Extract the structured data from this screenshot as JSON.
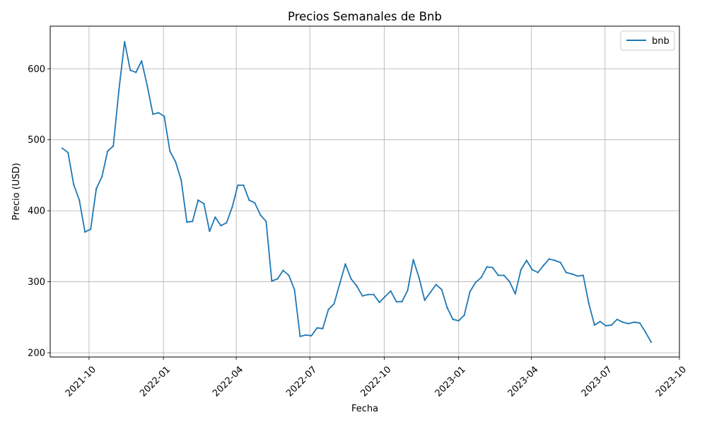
{
  "chart_data": {
    "type": "line",
    "title": "Precios Semanales de Bnb",
    "xlabel": "Fecha",
    "ylabel": "Precio (USD)",
    "x_ticks": [
      "2021-10",
      "2022-01",
      "2022-04",
      "2022-07",
      "2022-10",
      "2023-01",
      "2023-04",
      "2023-07",
      "2023-10"
    ],
    "y_ticks": [
      200,
      300,
      400,
      500,
      600
    ],
    "xlim": [
      "2021-08-14",
      "2023-10-01"
    ],
    "ylim": [
      194,
      660
    ],
    "grid": true,
    "legend_position": "top-right",
    "line_color": "#1f77b4",
    "series": [
      {
        "name": "bnb",
        "x": [
          "2021-08-29",
          "2021-09-05",
          "2021-09-12",
          "2021-09-19",
          "2021-09-26",
          "2021-10-03",
          "2021-10-10",
          "2021-10-17",
          "2021-10-24",
          "2021-10-31",
          "2021-11-07",
          "2021-11-14",
          "2021-11-21",
          "2021-11-28",
          "2021-12-05",
          "2021-12-12",
          "2021-12-19",
          "2021-12-26",
          "2022-01-02",
          "2022-01-09",
          "2022-01-16",
          "2022-01-23",
          "2022-01-30",
          "2022-02-06",
          "2022-02-13",
          "2022-02-20",
          "2022-02-27",
          "2022-03-06",
          "2022-03-13",
          "2022-03-20",
          "2022-03-27",
          "2022-04-03",
          "2022-04-10",
          "2022-04-17",
          "2022-04-24",
          "2022-05-01",
          "2022-05-08",
          "2022-05-15",
          "2022-05-22",
          "2022-05-29",
          "2022-06-05",
          "2022-06-12",
          "2022-06-19",
          "2022-06-26",
          "2022-07-03",
          "2022-07-10",
          "2022-07-17",
          "2022-07-24",
          "2022-07-31",
          "2022-08-07",
          "2022-08-14",
          "2022-08-21",
          "2022-08-28",
          "2022-09-04",
          "2022-09-11",
          "2022-09-18",
          "2022-09-25",
          "2022-10-02",
          "2022-10-09",
          "2022-10-16",
          "2022-10-23",
          "2022-10-30",
          "2022-11-06",
          "2022-11-13",
          "2022-11-20",
          "2022-11-27",
          "2022-12-04",
          "2022-12-11",
          "2022-12-18",
          "2022-12-25",
          "2023-01-01",
          "2023-01-08",
          "2023-01-15",
          "2023-01-22",
          "2023-01-29",
          "2023-02-05",
          "2023-02-12",
          "2023-02-19",
          "2023-02-26",
          "2023-03-05",
          "2023-03-12",
          "2023-03-19",
          "2023-03-26",
          "2023-04-02",
          "2023-04-09",
          "2023-04-16",
          "2023-04-23",
          "2023-04-30",
          "2023-05-07",
          "2023-05-14",
          "2023-05-21",
          "2023-05-28",
          "2023-06-04",
          "2023-06-11",
          "2023-06-18",
          "2023-06-25",
          "2023-07-02",
          "2023-07-09",
          "2023-07-16",
          "2023-07-23",
          "2023-07-30",
          "2023-08-06",
          "2023-08-13",
          "2023-08-20",
          "2023-08-27"
        ],
        "values": [
          488,
          482,
          437,
          415,
          370,
          374,
          431,
          448,
          484,
          491,
          570,
          638,
          598,
          595,
          611,
          576,
          536,
          538,
          533,
          484,
          469,
          443,
          384,
          385,
          415,
          410,
          371,
          391,
          379,
          383,
          405,
          436,
          436,
          415,
          411,
          394,
          385,
          301,
          304,
          316,
          309,
          289,
          223,
          225,
          224,
          235,
          234,
          261,
          269,
          297,
          325,
          304,
          294,
          280,
          282,
          282,
          271,
          279,
          287,
          272,
          272,
          288,
          331,
          306,
          274,
          285,
          296,
          289,
          263,
          247,
          245,
          253,
          286,
          299,
          306,
          321,
          320,
          309,
          309,
          300,
          283,
          317,
          330,
          317,
          313,
          323,
          332,
          330,
          327,
          313,
          311,
          308,
          309,
          269,
          239,
          244,
          238,
          239,
          247,
          243,
          241,
          243,
          242,
          229,
          215
        ]
      }
    ]
  }
}
